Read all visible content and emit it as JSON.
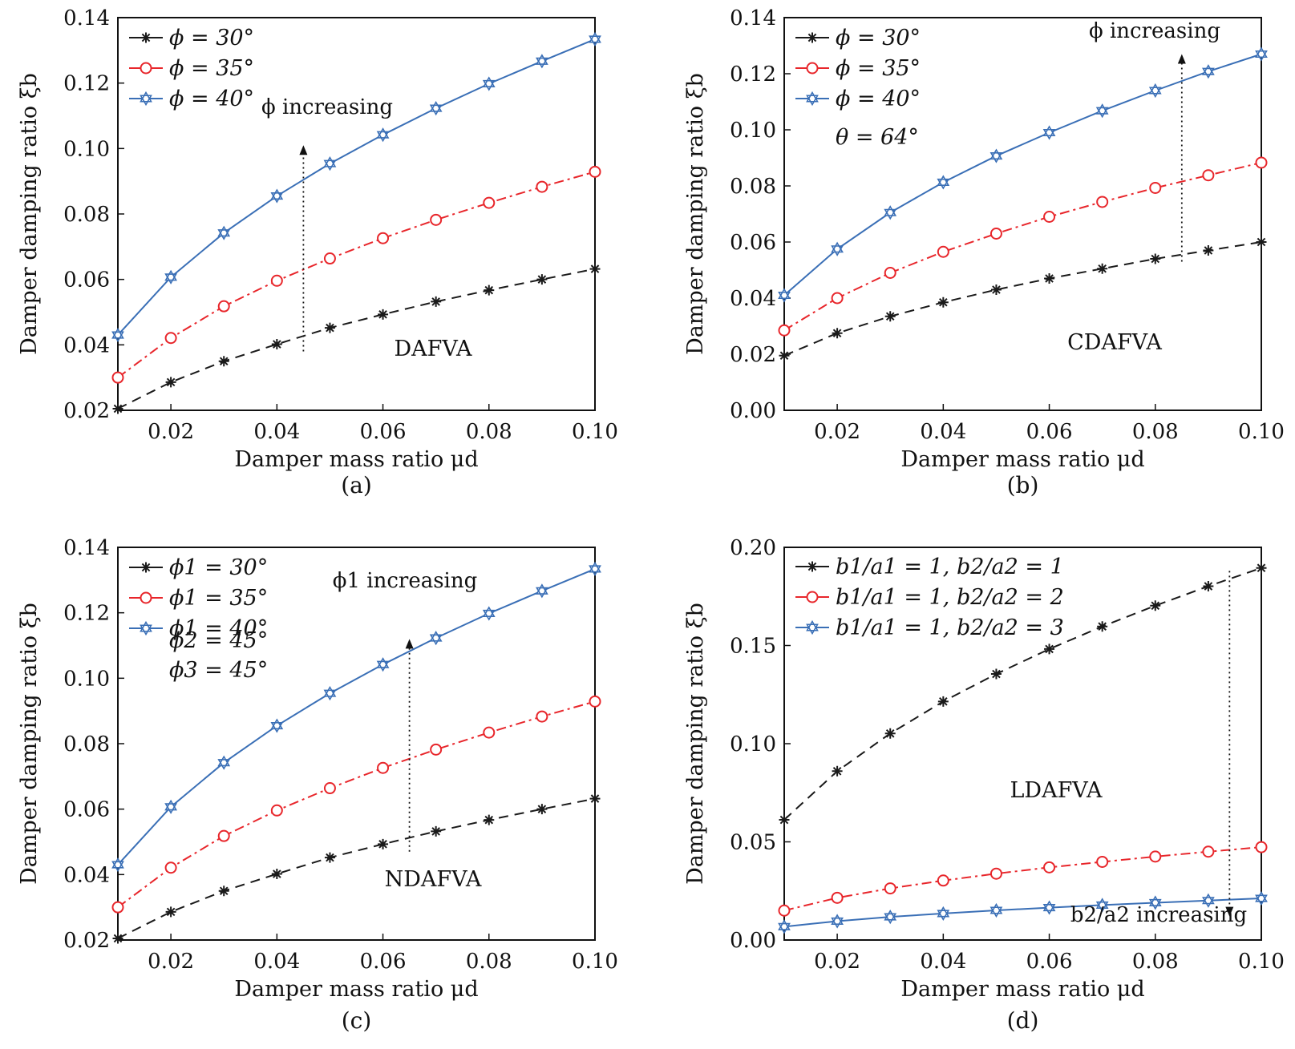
{
  "colors": {
    "series1": "#1a1a1a",
    "series2": "#e8262b",
    "series3": "#3a6fb6",
    "axis": "#111111"
  },
  "chart_data": [
    {
      "type": "line",
      "caption": "(a)",
      "inner_label": "DAFVA",
      "annotation": "ϕ increasing",
      "xlabel": "Damper mass ratio μd",
      "ylabel": "Damper damping ratio ξb",
      "xlim": [
        0.01,
        0.1
      ],
      "ylim": [
        0.02,
        0.14
      ],
      "xticks": [
        0.02,
        0.04,
        0.06,
        0.08,
        0.1
      ],
      "xtick_labels": [
        "0.02",
        "0.04",
        "0.06",
        "0.08",
        "0.10"
      ],
      "yticks": [
        0.02,
        0.04,
        0.06,
        0.08,
        0.1,
        0.12,
        0.14
      ],
      "ytick_labels": [
        "0.02",
        "0.04",
        "0.06",
        "0.08",
        "0.10",
        "0.12",
        "0.14"
      ],
      "legend_position": "top-left",
      "arrow": {
        "x": 0.045,
        "y_from": 0.038,
        "y_to": 0.101
      },
      "x": [
        0.01,
        0.02,
        0.03,
        0.04,
        0.05,
        0.06,
        0.07,
        0.08,
        0.09,
        0.1
      ],
      "series": [
        {
          "name": "ϕ = 30°",
          "marker": "asterisk",
          "dash": "long",
          "values": [
            0.0205,
            0.0286,
            0.035,
            0.0402,
            0.0452,
            0.0493,
            0.0532,
            0.0567,
            0.06,
            0.0632
          ]
        },
        {
          "name": "ϕ = 35°",
          "marker": "circle",
          "dash": "dashdot",
          "values": [
            0.03,
            0.0421,
            0.0518,
            0.0596,
            0.0664,
            0.0726,
            0.0782,
            0.0834,
            0.0883,
            0.0929
          ]
        },
        {
          "name": "ϕ = 40°",
          "marker": "star",
          "dash": "solid",
          "values": [
            0.043,
            0.0607,
            0.0742,
            0.0855,
            0.0954,
            0.1042,
            0.1123,
            0.1198,
            0.1267,
            0.1334
          ]
        }
      ]
    },
    {
      "type": "line",
      "caption": "(b)",
      "inner_label": "CDAFVA",
      "annotation": "ϕ increasing",
      "extra_legend": "θ = 64°",
      "xlabel": "Damper mass ratio μd",
      "ylabel": "Damper damping ratio ξb",
      "xlim": [
        0.01,
        0.1
      ],
      "ylim": [
        0.0,
        0.14
      ],
      "xticks": [
        0.02,
        0.04,
        0.06,
        0.08,
        0.1
      ],
      "xtick_labels": [
        "0.02",
        "0.04",
        "0.06",
        "0.08",
        "0.10"
      ],
      "yticks": [
        0.0,
        0.02,
        0.04,
        0.06,
        0.08,
        0.1,
        0.12,
        0.14
      ],
      "ytick_labels": [
        "0.00",
        "0.02",
        "0.04",
        "0.06",
        "0.08",
        "0.10",
        "0.12",
        "0.14"
      ],
      "legend_position": "top-left",
      "arrow": {
        "x": 0.085,
        "y_from": 0.053,
        "y_to": 0.127
      },
      "x": [
        0.01,
        0.02,
        0.03,
        0.04,
        0.05,
        0.06,
        0.07,
        0.08,
        0.09,
        0.1
      ],
      "series": [
        {
          "name": "ϕ = 30°",
          "marker": "asterisk",
          "dash": "long",
          "values": [
            0.0195,
            0.0275,
            0.0335,
            0.0385,
            0.043,
            0.047,
            0.0505,
            0.054,
            0.057,
            0.06
          ]
        },
        {
          "name": "ϕ = 35°",
          "marker": "circle",
          "dash": "dashdot",
          "values": [
            0.0285,
            0.04,
            0.049,
            0.0565,
            0.063,
            0.069,
            0.0743,
            0.0793,
            0.0838,
            0.0883
          ]
        },
        {
          "name": "ϕ = 40°",
          "marker": "star",
          "dash": "solid",
          "values": [
            0.041,
            0.0575,
            0.0705,
            0.0813,
            0.0907,
            0.099,
            0.1068,
            0.114,
            0.1208,
            0.127
          ]
        }
      ]
    },
    {
      "type": "line",
      "caption": "(c)",
      "inner_label": "NDAFVA",
      "annotation": "ϕ1 increasing",
      "extra_legend": [
        "ϕ2 = 45°",
        "ϕ3 = 45°"
      ],
      "xlabel": "Damper mass ratio μd",
      "ylabel": "Damper damping ratio ξb",
      "xlim": [
        0.01,
        0.1
      ],
      "ylim": [
        0.02,
        0.14
      ],
      "xticks": [
        0.02,
        0.04,
        0.06,
        0.08,
        0.1
      ],
      "xtick_labels": [
        "0.02",
        "0.04",
        "0.06",
        "0.08",
        "0.10"
      ],
      "yticks": [
        0.02,
        0.04,
        0.06,
        0.08,
        0.1,
        0.12,
        0.14
      ],
      "ytick_labels": [
        "0.02",
        "0.04",
        "0.06",
        "0.08",
        "0.10",
        "0.12",
        "0.14"
      ],
      "legend_position": "top-left",
      "arrow": {
        "x": 0.065,
        "y_from": 0.047,
        "y_to": 0.112
      },
      "x": [
        0.01,
        0.02,
        0.03,
        0.04,
        0.05,
        0.06,
        0.07,
        0.08,
        0.09,
        0.1
      ],
      "series": [
        {
          "name": "ϕ1 = 30°",
          "marker": "asterisk",
          "dash": "long",
          "values": [
            0.0205,
            0.0286,
            0.035,
            0.0402,
            0.0452,
            0.0493,
            0.0532,
            0.0567,
            0.06,
            0.0632
          ]
        },
        {
          "name": "ϕ1 = 35°",
          "marker": "circle",
          "dash": "dashdot",
          "values": [
            0.03,
            0.0421,
            0.0518,
            0.0596,
            0.0664,
            0.0726,
            0.0782,
            0.0834,
            0.0883,
            0.0929
          ]
        },
        {
          "name": "ϕ1 = 40°",
          "marker": "star",
          "dash": "solid",
          "values": [
            0.043,
            0.0607,
            0.0742,
            0.0855,
            0.0954,
            0.1042,
            0.1123,
            0.1198,
            0.1267,
            0.1334
          ]
        }
      ]
    },
    {
      "type": "line",
      "caption": "(d)",
      "inner_label": "LDAFVA",
      "annotation": "b2/a2 increasing",
      "xlabel": "Damper mass ratio μd",
      "ylabel": "Damper damping ratio ξb",
      "xlim": [
        0.01,
        0.1
      ],
      "ylim": [
        0.0,
        0.2
      ],
      "xticks": [
        0.02,
        0.04,
        0.06,
        0.08,
        0.1
      ],
      "xtick_labels": [
        "0.02",
        "0.04",
        "0.06",
        "0.08",
        "0.10"
      ],
      "yticks": [
        0.0,
        0.05,
        0.1,
        0.15,
        0.2
      ],
      "ytick_labels": [
        "0.00",
        "0.05",
        "0.10",
        "0.15",
        "0.20"
      ],
      "legend_position": "top-left",
      "arrow": {
        "x": 0.094,
        "y_from": 0.188,
        "y_to": 0.012
      },
      "x": [
        0.01,
        0.02,
        0.03,
        0.04,
        0.05,
        0.06,
        0.07,
        0.08,
        0.09,
        0.1
      ],
      "series": [
        {
          "name": "b1/a1 = 1, b2/a2 = 1",
          "marker": "asterisk",
          "dash": "long",
          "values": [
            0.0612,
            0.086,
            0.1052,
            0.1215,
            0.1355,
            0.1482,
            0.1597,
            0.1703,
            0.1802,
            0.1895
          ]
        },
        {
          "name": "b1/a1 = 1, b2/a2 = 2",
          "marker": "circle",
          "dash": "dashdot",
          "values": [
            0.015,
            0.0215,
            0.0263,
            0.0303,
            0.0338,
            0.037,
            0.0398,
            0.0425,
            0.045,
            0.0473
          ]
        },
        {
          "name": "b1/a1 = 1, b2/a2 = 3",
          "marker": "star",
          "dash": "solid",
          "values": [
            0.0068,
            0.0096,
            0.0118,
            0.0135,
            0.0151,
            0.0165,
            0.0178,
            0.019,
            0.0201,
            0.0212
          ]
        }
      ]
    }
  ]
}
